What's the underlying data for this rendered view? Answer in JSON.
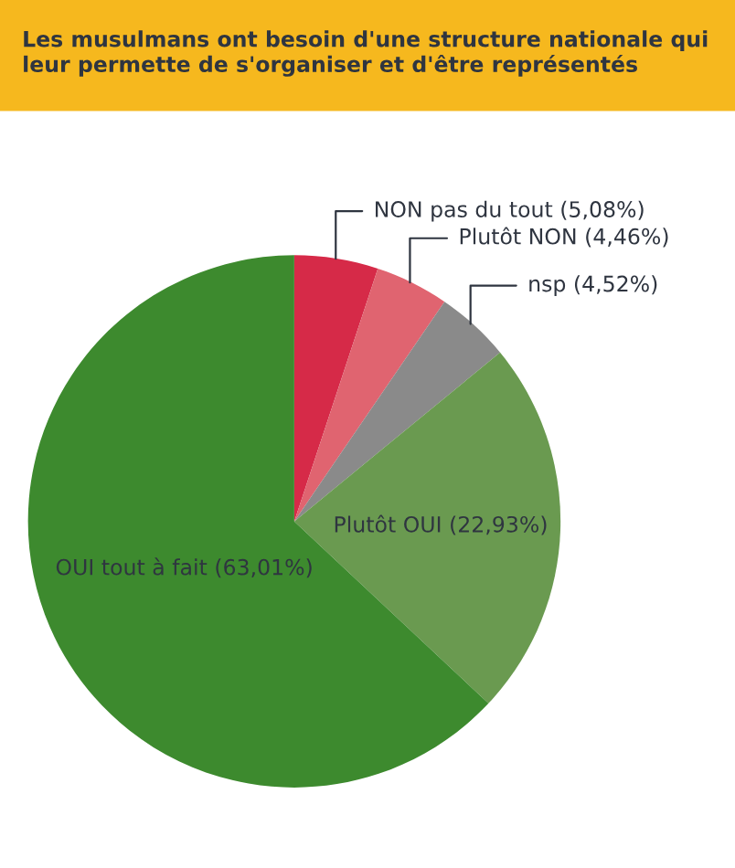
{
  "chart_data": {
    "type": "pie",
    "title": "Les musulmans ont besoin d'une structure nationale qui leur permette de s'organiser et d'être représentés",
    "categories": [
      "NON pas du tout",
      "Plutôt NON",
      "nsp",
      "Plutôt OUI",
      "OUI tout à fait"
    ],
    "values": [
      5.08,
      4.46,
      4.52,
      22.93,
      63.01
    ],
    "value_labels": [
      "(5,08%)",
      "(4,46%)",
      "(4,52%)",
      "(22,93%)",
      "(63,01%)"
    ],
    "colors": [
      "#d62a48",
      "#e06470",
      "#8a8a8a",
      "#6a9a50",
      "#3d8a2e"
    ],
    "legend": false
  }
}
